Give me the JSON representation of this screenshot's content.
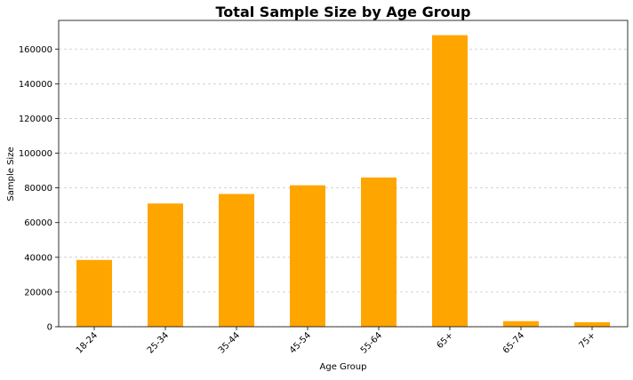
{
  "chart_data": {
    "type": "bar",
    "title": "Total Sample Size by Age Group",
    "xlabel": "Age Group",
    "ylabel": "Sample Size",
    "categories": [
      "18-24",
      "25-34",
      "35-44",
      "45-54",
      "55-64",
      "65+",
      "65-74",
      "75+"
    ],
    "values": [
      38500,
      71000,
      76500,
      81500,
      86000,
      168000,
      3200,
      2600
    ],
    "ylim": [
      0,
      176500
    ],
    "yticks": [
      0,
      20000,
      40000,
      60000,
      80000,
      100000,
      120000,
      140000,
      160000
    ],
    "grid": "y-dashed",
    "bar_color": "#ffa500",
    "legend": "none"
  }
}
